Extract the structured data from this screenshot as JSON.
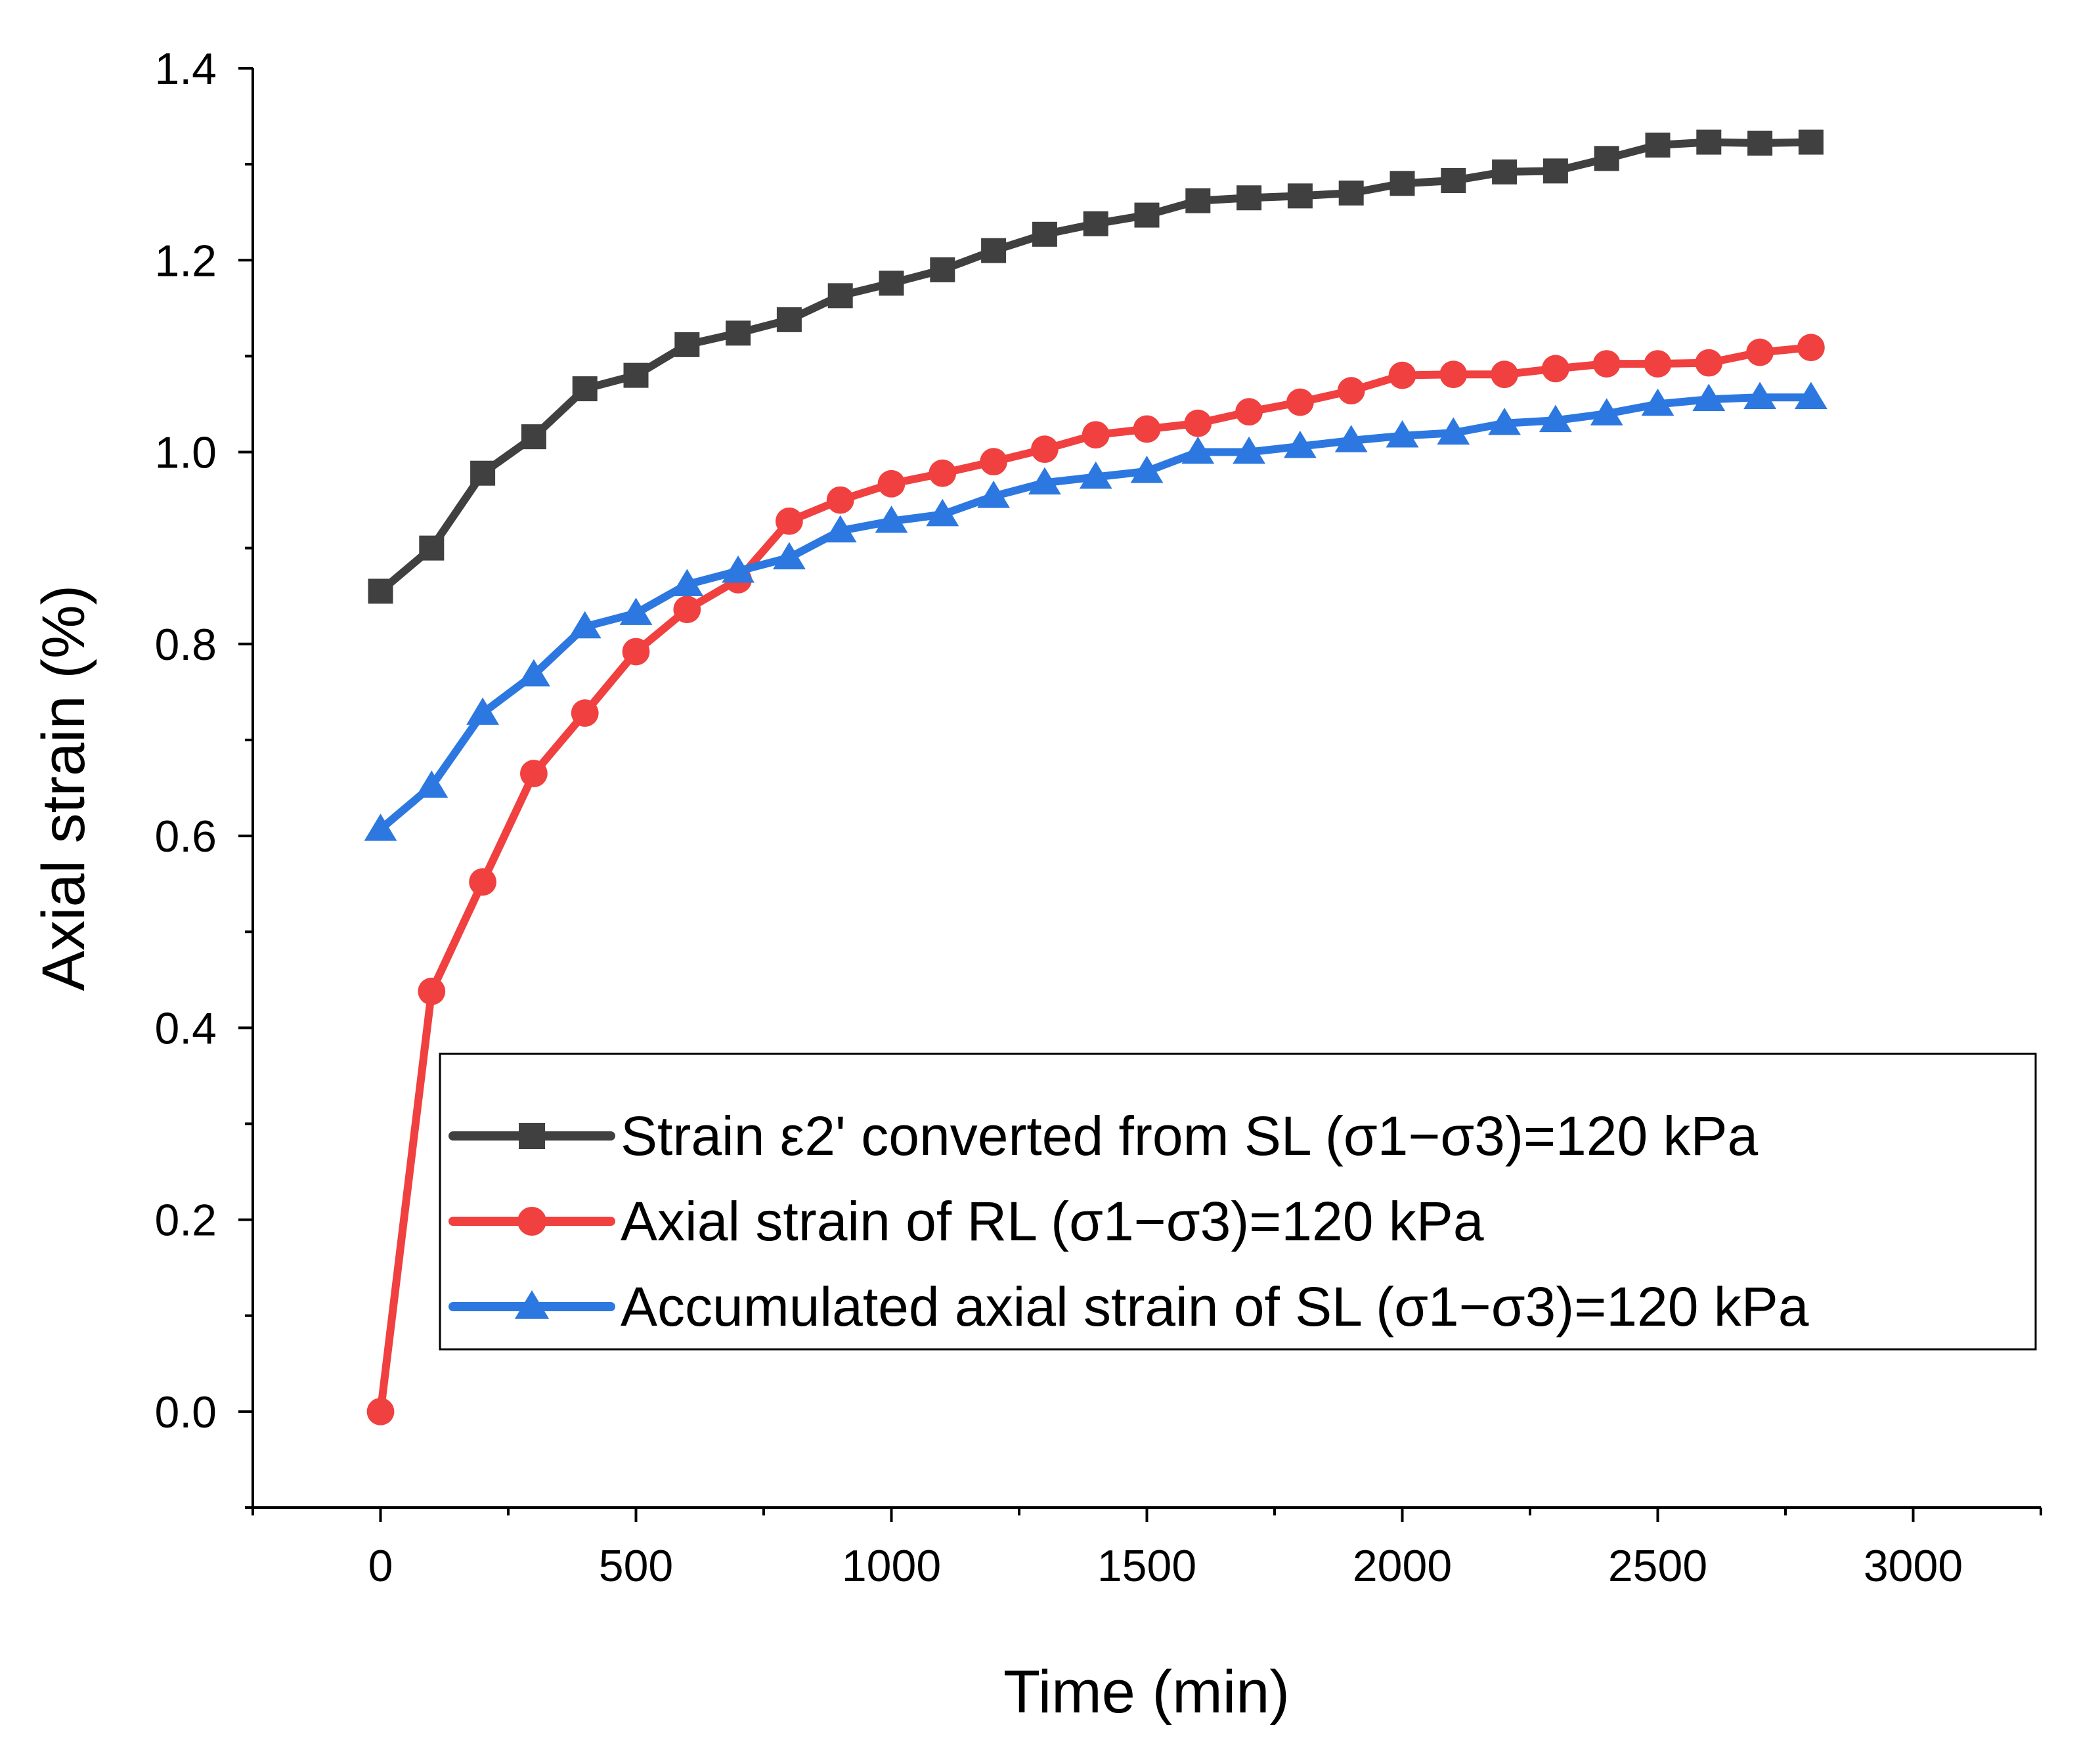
{
  "chart_data": {
    "type": "line",
    "title": "",
    "xlabel": "Time (min)",
    "ylabel": "Axial strain (%)",
    "xlim": [
      -250,
      3250
    ],
    "ylim": [
      -0.1,
      1.4
    ],
    "xticks": [
      0,
      500,
      1000,
      1500,
      2000,
      2500,
      3000
    ],
    "yticks": [
      0.0,
      0.2,
      0.4,
      0.6,
      0.8,
      1.0,
      1.2,
      1.4
    ],
    "xtick_labels": [
      "0",
      "500",
      "1000",
      "1500",
      "2000",
      "2500",
      "3000"
    ],
    "ytick_labels": [
      "0.0",
      "0.2",
      "0.4",
      "0.6",
      "0.8",
      "1.0",
      "1.2",
      "1.4"
    ],
    "x": [
      0,
      100,
      200,
      300,
      400,
      500,
      600,
      700,
      800,
      900,
      1000,
      1100,
      1200,
      1300,
      1400,
      1500,
      1600,
      1700,
      1800,
      1900,
      2000,
      2100,
      2200,
      2300,
      2400,
      2500,
      2600,
      2700,
      2800
    ],
    "series": [
      {
        "name": "Strain ε2' converted from SL (σ1−σ3)=120 kPa",
        "color": "#404040",
        "marker": "square",
        "values": [
          0.855,
          0.9,
          0.978,
          1.016,
          1.066,
          1.08,
          1.112,
          1.124,
          1.138,
          1.163,
          1.176,
          1.19,
          1.21,
          1.227,
          1.238,
          1.247,
          1.262,
          1.265,
          1.267,
          1.27,
          1.28,
          1.283,
          1.292,
          1.293,
          1.306,
          1.32,
          1.323,
          1.322,
          1.323
        ]
      },
      {
        "name": "Axial strain of RL (σ1−σ3)=120 kPa",
        "color": "#f04040",
        "marker": "circle",
        "values": [
          0.0,
          0.438,
          0.552,
          0.665,
          0.728,
          0.792,
          0.836,
          0.867,
          0.928,
          0.95,
          0.967,
          0.978,
          0.99,
          1.003,
          1.018,
          1.024,
          1.03,
          1.042,
          1.052,
          1.064,
          1.08,
          1.081,
          1.081,
          1.087,
          1.092,
          1.092,
          1.093,
          1.104,
          1.109
        ]
      },
      {
        "name": "Accumulated axial strain of SL (σ1−σ3)=120 kPa",
        "color": "#2c78e0",
        "marker": "triangle",
        "values": [
          0.607,
          0.652,
          0.728,
          0.768,
          0.818,
          0.832,
          0.862,
          0.876,
          0.89,
          0.918,
          0.928,
          0.935,
          0.954,
          0.968,
          0.974,
          0.98,
          1.0,
          1.0,
          1.006,
          1.012,
          1.017,
          1.02,
          1.03,
          1.033,
          1.04,
          1.05,
          1.055,
          1.057,
          1.057
        ]
      }
    ],
    "legend_position": "lower-right",
    "grid": false
  }
}
